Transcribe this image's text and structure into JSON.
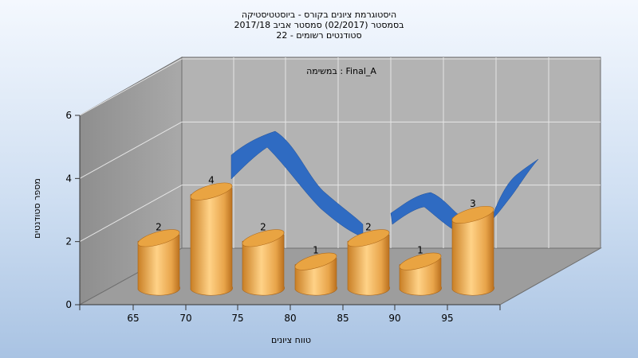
{
  "chart_data": {
    "type": "bar",
    "title_lines": [
      "היסטוגרמת ציונים בקורס - ביוסטטיסטיקה",
      "בסמסטר  (02/2017)  סמסטר אביב 2017/18",
      "סטודנטים רשומים - 22"
    ],
    "inner_title": "במשימה : Final_A",
    "xlabel": "טווח ציונים",
    "ylabel": "מספר סטודנטים",
    "x_ticks": [
      "65",
      "70",
      "75",
      "80",
      "85",
      "90",
      "95"
    ],
    "y_ticks": [
      "0",
      "2",
      "4",
      "6"
    ],
    "ylim": [
      0,
      6
    ],
    "values": [
      2,
      4,
      2,
      1,
      2,
      1,
      3
    ],
    "data_labels": [
      "2",
      "4",
      "2",
      "1",
      "2",
      "1",
      "3"
    ],
    "colors": {
      "bar": "#e8a44a",
      "curve": "#2f6bc2"
    }
  }
}
